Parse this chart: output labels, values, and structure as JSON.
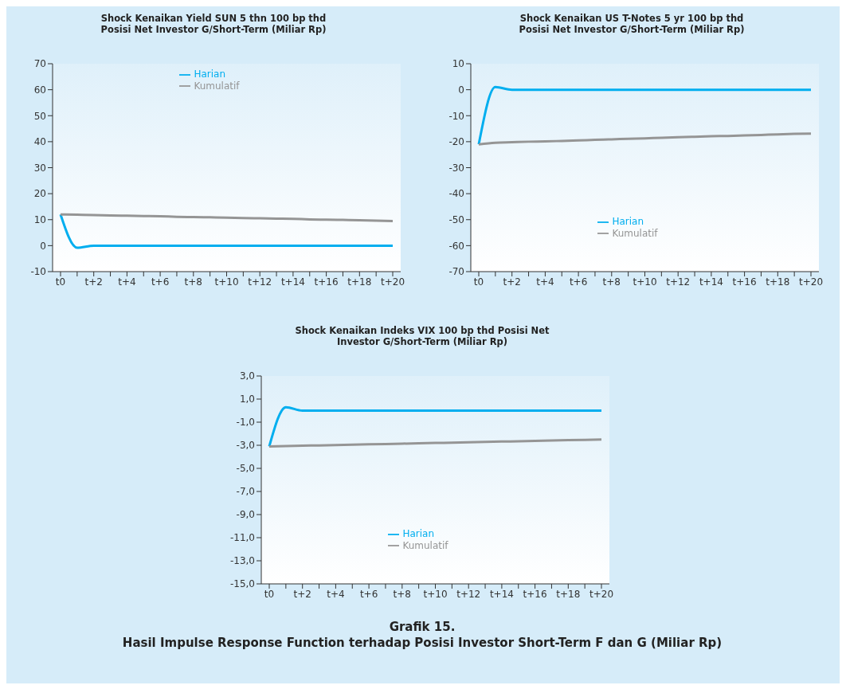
{
  "chart_data": [
    {
      "type": "line",
      "title": "Shock Kenaikan Yield SUN 5 thn 100 bp thd Posisi Net Investor G/Short-Term (Miliar Rp)",
      "categories": [
        "t0",
        null,
        "t+2",
        null,
        "t+4",
        null,
        "t+6",
        null,
        "t+8",
        null,
        "t+10",
        null,
        "t+12",
        null,
        "t+14",
        null,
        "t+16",
        null,
        "t+18",
        null,
        "t+20"
      ],
      "series": [
        {
          "name": "Harian",
          "color": "#00aeef",
          "values": [
            12,
            -0.8,
            0,
            0,
            0,
            0,
            0,
            0,
            0,
            0,
            0,
            0,
            0,
            0,
            0,
            0,
            0,
            0,
            0,
            0,
            0
          ]
        },
        {
          "name": "Kumulatif",
          "color": "#959595",
          "values": [
            12.0,
            11.9,
            11.8,
            11.6,
            11.5,
            11.4,
            11.3,
            11.1,
            11.0,
            10.9,
            10.8,
            10.6,
            10.5,
            10.4,
            10.3,
            10.1,
            10.0,
            9.9,
            9.8,
            9.6,
            9.5
          ]
        }
      ],
      "ylim": [
        -10,
        70
      ],
      "yticks": [
        -10,
        0,
        10,
        20,
        30,
        40,
        50,
        60,
        70
      ],
      "grid": false,
      "legend": "top",
      "marker": "none",
      "line_style": "solid"
    },
    {
      "type": "line",
      "title": "Shock Kenaikan US T-Notes 5 yr 100 bp thd Posisi Net Investor G/Short-Term (Miliar Rp)",
      "categories": [
        "t0",
        null,
        "t+2",
        null,
        "t+4",
        null,
        "t+6",
        null,
        "t+8",
        null,
        "t+10",
        null,
        "t+12",
        null,
        "t+14",
        null,
        "t+16",
        null,
        "t+18",
        null,
        "t+20"
      ],
      "series": [
        {
          "name": "Harian",
          "color": "#00aeef",
          "values": [
            -21,
            1,
            0,
            0,
            0,
            0,
            0,
            0,
            0,
            0,
            0,
            0,
            0,
            0,
            0,
            0,
            0,
            0,
            0,
            0,
            0
          ]
        },
        {
          "name": "Kumulatif",
          "color": "#959595",
          "values": [
            -21,
            -20.4,
            -20.2,
            -20.0,
            -19.9,
            -19.7,
            -19.5,
            -19.3,
            -19.1,
            -18.9,
            -18.7,
            -18.5,
            -18.3,
            -18.1,
            -17.9,
            -17.8,
            -17.6,
            -17.4,
            -17.2,
            -17.0,
            -16.9
          ]
        }
      ],
      "ylim": [
        -70,
        10
      ],
      "yticks": [
        -70,
        -60,
        -50,
        -40,
        -30,
        -20,
        -10,
        0,
        10
      ],
      "grid": false,
      "legend": "bottom",
      "marker": "none",
      "line_style": "solid"
    },
    {
      "type": "line",
      "title": "Shock Kenaikan Indeks VIX 100 bp thd Posisi Net Investor G/Short-Term (Miliar Rp)",
      "categories": [
        "t0",
        null,
        "t+2",
        null,
        "t+4",
        null,
        "t+6",
        null,
        "t+8",
        null,
        "t+10",
        null,
        "t+12",
        null,
        "t+14",
        null,
        "t+16",
        null,
        "t+18",
        null,
        "t+20"
      ],
      "series": [
        {
          "name": "Harian",
          "color": "#00aeef",
          "values": [
            -3.1,
            0.3,
            0,
            0,
            0,
            0,
            0,
            0,
            0,
            0,
            0,
            0,
            0,
            0,
            0,
            0,
            0,
            0,
            0,
            0,
            0
          ]
        },
        {
          "name": "Kumulatif",
          "color": "#959595",
          "values": [
            -3.1,
            -3.07,
            -3.04,
            -3.01,
            -2.98,
            -2.95,
            -2.92,
            -2.89,
            -2.86,
            -2.83,
            -2.8,
            -2.77,
            -2.74,
            -2.71,
            -2.68,
            -2.65,
            -2.62,
            -2.59,
            -2.56,
            -2.53,
            -2.5
          ]
        }
      ],
      "ylim": [
        -15,
        3
      ],
      "yticks": [
        {
          "value": -15,
          "label": "-15,0"
        },
        {
          "value": -13,
          "label": "-13,0"
        },
        {
          "value": -11,
          "label": "-11,0"
        },
        {
          "value": -9,
          "label": "-9,0"
        },
        {
          "value": -7,
          "label": "-7,0"
        },
        {
          "value": -5,
          "label": "-5,0"
        },
        {
          "value": -3,
          "label": "-3,0"
        },
        {
          "value": -1,
          "label": "-1,0"
        },
        {
          "value": 1,
          "label": "1,0"
        },
        {
          "value": 3,
          "label": "3,0"
        }
      ],
      "grid": false,
      "legend": "bottom",
      "marker": "none",
      "line_style": "solid",
      "annotations": [
        "Grafik 15.",
        "Hasil Impulse Response Function terhadap Posisi Investor Short-Term F dan G (Miliar Rp)"
      ]
    }
  ]
}
